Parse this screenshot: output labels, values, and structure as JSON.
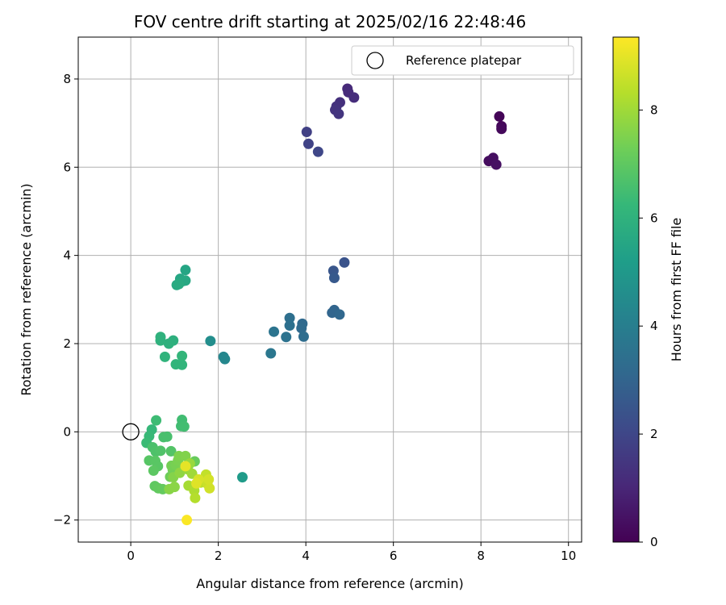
{
  "chart_data": {
    "type": "scatter",
    "title": "FOV centre drift starting at 2025/02/16 22:48:46",
    "xlabel": "Angular distance from reference (arcmin)",
    "ylabel": "Rotation from reference (arcmin)",
    "xlim": [
      -1.2,
      10.3
    ],
    "ylim": [
      -2.5,
      8.95
    ],
    "xticks": [
      0,
      2,
      4,
      6,
      8,
      10
    ],
    "yticks": [
      -2,
      0,
      2,
      4,
      6,
      8
    ],
    "xtick_labels": [
      "0",
      "2",
      "4",
      "6",
      "8",
      "10"
    ],
    "ytick_labels": [
      "−2",
      "0",
      "2",
      "4",
      "6",
      "8"
    ],
    "grid": true,
    "legend": {
      "position": "top-right",
      "label": "Reference platepar"
    },
    "reference_point": {
      "x": 0,
      "y": 0
    },
    "colormap": "viridis",
    "colorbar": {
      "label": "Hours from first FF file",
      "range": [
        0,
        9.35
      ],
      "ticks": [
        0,
        2,
        4,
        6,
        8
      ],
      "tick_labels": [
        "0",
        "2",
        "4",
        "6",
        "8"
      ]
    },
    "points": [
      {
        "x": 8.42,
        "y": 7.15,
        "c": 0.1
      },
      {
        "x": 8.47,
        "y": 6.93,
        "c": 0.15
      },
      {
        "x": 8.47,
        "y": 6.87,
        "c": 0.2
      },
      {
        "x": 8.18,
        "y": 6.14,
        "c": 0.3
      },
      {
        "x": 8.28,
        "y": 6.21,
        "c": 0.35
      },
      {
        "x": 8.35,
        "y": 6.06,
        "c": 0.4
      },
      {
        "x": 4.95,
        "y": 7.78,
        "c": 1.1
      },
      {
        "x": 4.97,
        "y": 7.7,
        "c": 1.15
      },
      {
        "x": 5.1,
        "y": 7.58,
        "c": 1.2
      },
      {
        "x": 4.78,
        "y": 7.47,
        "c": 1.3
      },
      {
        "x": 4.7,
        "y": 7.38,
        "c": 1.35
      },
      {
        "x": 4.67,
        "y": 7.3,
        "c": 1.4
      },
      {
        "x": 4.75,
        "y": 7.21,
        "c": 1.45
      },
      {
        "x": 4.02,
        "y": 6.8,
        "c": 1.8
      },
      {
        "x": 4.06,
        "y": 6.53,
        "c": 1.9
      },
      {
        "x": 4.28,
        "y": 6.35,
        "c": 2.0
      },
      {
        "x": 4.88,
        "y": 3.84,
        "c": 2.4
      },
      {
        "x": 4.63,
        "y": 3.65,
        "c": 2.5
      },
      {
        "x": 4.65,
        "y": 3.49,
        "c": 2.6
      },
      {
        "x": 4.65,
        "y": 2.76,
        "c": 3.0
      },
      {
        "x": 4.6,
        "y": 2.7,
        "c": 3.05
      },
      {
        "x": 4.77,
        "y": 2.66,
        "c": 3.1
      },
      {
        "x": 3.92,
        "y": 2.45,
        "c": 3.2
      },
      {
        "x": 3.9,
        "y": 2.35,
        "c": 3.25
      },
      {
        "x": 3.95,
        "y": 2.16,
        "c": 3.3
      },
      {
        "x": 3.63,
        "y": 2.58,
        "c": 3.4
      },
      {
        "x": 3.63,
        "y": 2.41,
        "c": 3.45
      },
      {
        "x": 3.55,
        "y": 2.15,
        "c": 3.5
      },
      {
        "x": 3.27,
        "y": 2.27,
        "c": 3.6
      },
      {
        "x": 3.2,
        "y": 1.78,
        "c": 3.7
      },
      {
        "x": 2.12,
        "y": 1.7,
        "c": 4.3
      },
      {
        "x": 2.15,
        "y": 1.65,
        "c": 4.35
      },
      {
        "x": 1.82,
        "y": 2.06,
        "c": 4.6
      },
      {
        "x": 2.55,
        "y": -1.03,
        "c": 5.1
      },
      {
        "x": 1.25,
        "y": 3.67,
        "c": 5.5
      },
      {
        "x": 1.13,
        "y": 3.47,
        "c": 5.55
      },
      {
        "x": 1.2,
        "y": 3.42,
        "c": 5.6
      },
      {
        "x": 1.25,
        "y": 3.43,
        "c": 5.6
      },
      {
        "x": 1.05,
        "y": 3.33,
        "c": 5.65
      },
      {
        "x": 1.1,
        "y": 3.35,
        "c": 5.7
      },
      {
        "x": 0.97,
        "y": 2.07,
        "c": 5.9
      },
      {
        "x": 0.87,
        "y": 2.0,
        "c": 5.95
      },
      {
        "x": 0.68,
        "y": 2.15,
        "c": 6.0
      },
      {
        "x": 0.68,
        "y": 2.07,
        "c": 6.0
      },
      {
        "x": 0.78,
        "y": 1.7,
        "c": 6.05
      },
      {
        "x": 1.03,
        "y": 1.53,
        "c": 6.1
      },
      {
        "x": 1.17,
        "y": 1.52,
        "c": 6.1
      },
      {
        "x": 1.17,
        "y": 1.72,
        "c": 6.15
      },
      {
        "x": 0.48,
        "y": 0.05,
        "c": 6.25
      },
      {
        "x": 0.42,
        "y": -0.1,
        "c": 6.3
      },
      {
        "x": 0.36,
        "y": -0.25,
        "c": 6.35
      },
      {
        "x": 0.58,
        "y": 0.26,
        "c": 6.4
      },
      {
        "x": 1.17,
        "y": 0.27,
        "c": 6.45
      },
      {
        "x": 1.15,
        "y": 0.13,
        "c": 6.45
      },
      {
        "x": 1.22,
        "y": 0.12,
        "c": 6.5
      },
      {
        "x": 0.75,
        "y": -0.12,
        "c": 6.6
      },
      {
        "x": 0.83,
        "y": -0.11,
        "c": 6.6
      },
      {
        "x": 0.5,
        "y": -0.35,
        "c": 6.65
      },
      {
        "x": 0.57,
        "y": -0.45,
        "c": 6.7
      },
      {
        "x": 0.68,
        "y": -0.43,
        "c": 6.75
      },
      {
        "x": 0.92,
        "y": -0.44,
        "c": 6.8
      },
      {
        "x": 0.42,
        "y": -0.65,
        "c": 6.85
      },
      {
        "x": 0.56,
        "y": -0.66,
        "c": 6.9
      },
      {
        "x": 0.62,
        "y": -0.78,
        "c": 6.9
      },
      {
        "x": 0.52,
        "y": -0.88,
        "c": 6.95
      },
      {
        "x": 0.55,
        "y": -1.23,
        "c": 7.0
      },
      {
        "x": 0.63,
        "y": -1.28,
        "c": 7.05
      },
      {
        "x": 0.73,
        "y": -1.3,
        "c": 7.1
      },
      {
        "x": 1.46,
        "y": -0.67,
        "c": 7.15
      },
      {
        "x": 0.9,
        "y": -1.02,
        "c": 7.25
      },
      {
        "x": 0.96,
        "y": -0.86,
        "c": 7.3
      },
      {
        "x": 0.93,
        "y": -0.77,
        "c": 7.35
      },
      {
        "x": 1.03,
        "y": -0.75,
        "c": 7.4
      },
      {
        "x": 1.08,
        "y": -0.65,
        "c": 7.45
      },
      {
        "x": 1.1,
        "y": -0.55,
        "c": 7.5
      },
      {
        "x": 1.25,
        "y": -0.55,
        "c": 7.55
      },
      {
        "x": 0.97,
        "y": -1.03,
        "c": 7.6
      },
      {
        "x": 0.88,
        "y": -1.3,
        "c": 7.65
      },
      {
        "x": 1.0,
        "y": -1.25,
        "c": 7.7
      },
      {
        "x": 1.12,
        "y": -0.93,
        "c": 7.75
      },
      {
        "x": 1.3,
        "y": -0.85,
        "c": 7.85
      },
      {
        "x": 1.35,
        "y": -0.72,
        "c": 7.9
      },
      {
        "x": 1.4,
        "y": -0.95,
        "c": 8.0
      },
      {
        "x": 1.32,
        "y": -1.22,
        "c": 8.1
      },
      {
        "x": 1.45,
        "y": -1.33,
        "c": 8.2
      },
      {
        "x": 1.47,
        "y": -1.5,
        "c": 8.3
      },
      {
        "x": 1.6,
        "y": -1.15,
        "c": 8.4
      },
      {
        "x": 1.72,
        "y": -0.97,
        "c": 8.5
      },
      {
        "x": 1.75,
        "y": -1.18,
        "c": 8.6
      },
      {
        "x": 1.8,
        "y": -1.28,
        "c": 8.7
      },
      {
        "x": 1.78,
        "y": -1.08,
        "c": 8.75
      },
      {
        "x": 1.55,
        "y": -1.08,
        "c": 8.8
      },
      {
        "x": 1.5,
        "y": -1.17,
        "c": 8.9
      },
      {
        "x": 1.25,
        "y": -0.78,
        "c": 9.0
      },
      {
        "x": 1.28,
        "y": -2.0,
        "c": 9.3
      }
    ]
  }
}
